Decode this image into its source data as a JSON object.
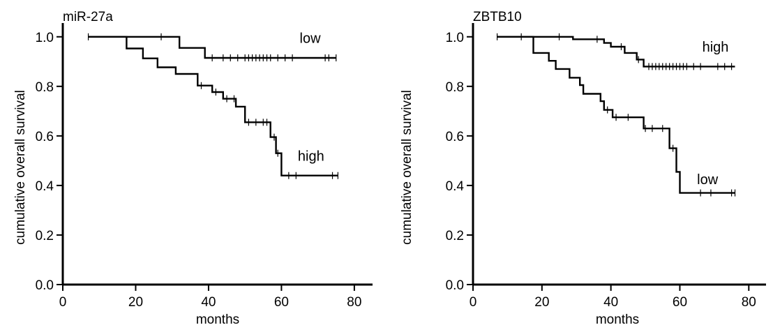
{
  "chart_data": [
    {
      "type": "line",
      "title": "miR-27a",
      "xlabel": "months",
      "ylabel": "cumulative overall survival",
      "xlim": [
        0,
        85
      ],
      "ylim": [
        0,
        1.05
      ],
      "x_ticks": [
        "0",
        "20",
        "40",
        "60",
        "80"
      ],
      "y_ticks": [
        "0.0",
        "0.2",
        "0.4",
        "0.6",
        "0.8",
        "1.0"
      ],
      "grid": false,
      "series": [
        {
          "name": "low",
          "steps": [
            [
              7,
              1.0
            ],
            [
              32,
              1.0
            ],
            [
              32,
              0.955
            ],
            [
              39,
              0.955
            ],
            [
              39,
              0.915
            ],
            [
              75,
              0.915
            ]
          ],
          "censored": [
            [
              7,
              1.0
            ],
            [
              27,
              1.0
            ],
            [
              41,
              0.915
            ],
            [
              44,
              0.915
            ],
            [
              46,
              0.915
            ],
            [
              48,
              0.915
            ],
            [
              50,
              0.915
            ],
            [
              51,
              0.915
            ],
            [
              52,
              0.915
            ],
            [
              53,
              0.915
            ],
            [
              54,
              0.915
            ],
            [
              55,
              0.915
            ],
            [
              56,
              0.915
            ],
            [
              57,
              0.915
            ],
            [
              59,
              0.915
            ],
            [
              61,
              0.915
            ],
            [
              63,
              0.915
            ],
            [
              72,
              0.915
            ],
            [
              73,
              0.915
            ],
            [
              75,
              0.915
            ]
          ]
        },
        {
          "name": "high",
          "steps": [
            [
              7,
              1.0
            ],
            [
              17.5,
              1.0
            ],
            [
              17.5,
              0.953
            ],
            [
              22,
              0.953
            ],
            [
              22,
              0.913
            ],
            [
              26,
              0.913
            ],
            [
              26,
              0.877
            ],
            [
              31,
              0.877
            ],
            [
              31,
              0.85
            ],
            [
              37,
              0.85
            ],
            [
              37,
              0.803
            ],
            [
              41,
              0.803
            ],
            [
              41,
              0.777
            ],
            [
              44,
              0.777
            ],
            [
              44,
              0.75
            ],
            [
              47.5,
              0.75
            ],
            [
              47.5,
              0.718
            ],
            [
              50,
              0.718
            ],
            [
              50,
              0.655
            ],
            [
              57,
              0.655
            ],
            [
              57,
              0.595
            ],
            [
              58.5,
              0.595
            ],
            [
              58.5,
              0.53
            ],
            [
              60,
              0.53
            ],
            [
              60,
              0.44
            ],
            [
              75.5,
              0.44
            ]
          ],
          "censored": [
            [
              38,
              0.803
            ],
            [
              42,
              0.777
            ],
            [
              45,
              0.75
            ],
            [
              47,
              0.75
            ],
            [
              51,
              0.655
            ],
            [
              53,
              0.655
            ],
            [
              55,
              0.655
            ],
            [
              56,
              0.655
            ],
            [
              58,
              0.595
            ],
            [
              59,
              0.53
            ],
            [
              62,
              0.44
            ],
            [
              64,
              0.44
            ],
            [
              74,
              0.44
            ],
            [
              75.5,
              0.44
            ]
          ]
        }
      ],
      "curve_labels": [
        {
          "text": "low",
          "x": 65,
          "y": 0.975
        },
        {
          "text": "high",
          "x": 64.5,
          "y": 0.5
        }
      ]
    },
    {
      "type": "line",
      "title": "ZBTB10",
      "xlabel": "months",
      "ylabel": "cumulative overall survival",
      "xlim": [
        0,
        85
      ],
      "ylim": [
        0,
        1.05
      ],
      "x_ticks": [
        "0",
        "20",
        "40",
        "60",
        "80"
      ],
      "y_ticks": [
        "0.0",
        "0.2",
        "0.4",
        "0.6",
        "0.8",
        "1.0"
      ],
      "grid": false,
      "series": [
        {
          "name": "high",
          "steps": [
            [
              7,
              1.0
            ],
            [
              29,
              1.0
            ],
            [
              29,
              0.99
            ],
            [
              38,
              0.99
            ],
            [
              38,
              0.975
            ],
            [
              40,
              0.975
            ],
            [
              40,
              0.96
            ],
            [
              44,
              0.96
            ],
            [
              44,
              0.935
            ],
            [
              47.5,
              0.935
            ],
            [
              47.5,
              0.908
            ],
            [
              49.5,
              0.908
            ],
            [
              49.5,
              0.88
            ],
            [
              76,
              0.88
            ]
          ],
          "censored": [
            [
              7,
              1.0
            ],
            [
              14,
              1.0
            ],
            [
              25,
              1.0
            ],
            [
              36,
              0.99
            ],
            [
              43,
              0.96
            ],
            [
              48,
              0.908
            ],
            [
              51,
              0.88
            ],
            [
              52,
              0.88
            ],
            [
              53,
              0.88
            ],
            [
              54,
              0.88
            ],
            [
              55,
              0.88
            ],
            [
              56,
              0.88
            ],
            [
              57,
              0.88
            ],
            [
              58,
              0.88
            ],
            [
              59,
              0.88
            ],
            [
              60,
              0.88
            ],
            [
              61,
              0.88
            ],
            [
              62,
              0.88
            ],
            [
              64,
              0.88
            ],
            [
              66,
              0.88
            ],
            [
              71,
              0.88
            ],
            [
              73,
              0.88
            ],
            [
              75,
              0.88
            ]
          ]
        },
        {
          "name": "low",
          "steps": [
            [
              7,
              1.0
            ],
            [
              17.5,
              1.0
            ],
            [
              17.5,
              0.935
            ],
            [
              22,
              0.935
            ],
            [
              22,
              0.903
            ],
            [
              24,
              0.903
            ],
            [
              24,
              0.87
            ],
            [
              28,
              0.87
            ],
            [
              28,
              0.835
            ],
            [
              31,
              0.835
            ],
            [
              31,
              0.805
            ],
            [
              32,
              0.805
            ],
            [
              32,
              0.77
            ],
            [
              37,
              0.77
            ],
            [
              37,
              0.74
            ],
            [
              38,
              0.74
            ],
            [
              38,
              0.705
            ],
            [
              40.5,
              0.705
            ],
            [
              40.5,
              0.675
            ],
            [
              49.5,
              0.675
            ],
            [
              49.5,
              0.63
            ],
            [
              57,
              0.63
            ],
            [
              57,
              0.55
            ],
            [
              59,
              0.55
            ],
            [
              59,
              0.455
            ],
            [
              60,
              0.455
            ],
            [
              60,
              0.37
            ],
            [
              76,
              0.37
            ]
          ],
          "censored": [
            [
              39,
              0.705
            ],
            [
              41.5,
              0.675
            ],
            [
              45,
              0.675
            ],
            [
              50,
              0.63
            ],
            [
              52,
              0.63
            ],
            [
              55,
              0.63
            ],
            [
              58,
              0.55
            ],
            [
              66,
              0.37
            ],
            [
              69,
              0.37
            ],
            [
              75,
              0.37
            ],
            [
              76,
              0.37
            ]
          ]
        }
      ],
      "curve_labels": [
        {
          "text": "high",
          "x": 66.5,
          "y": 0.94
        },
        {
          "text": "low",
          "x": 65,
          "y": 0.405
        }
      ]
    }
  ]
}
